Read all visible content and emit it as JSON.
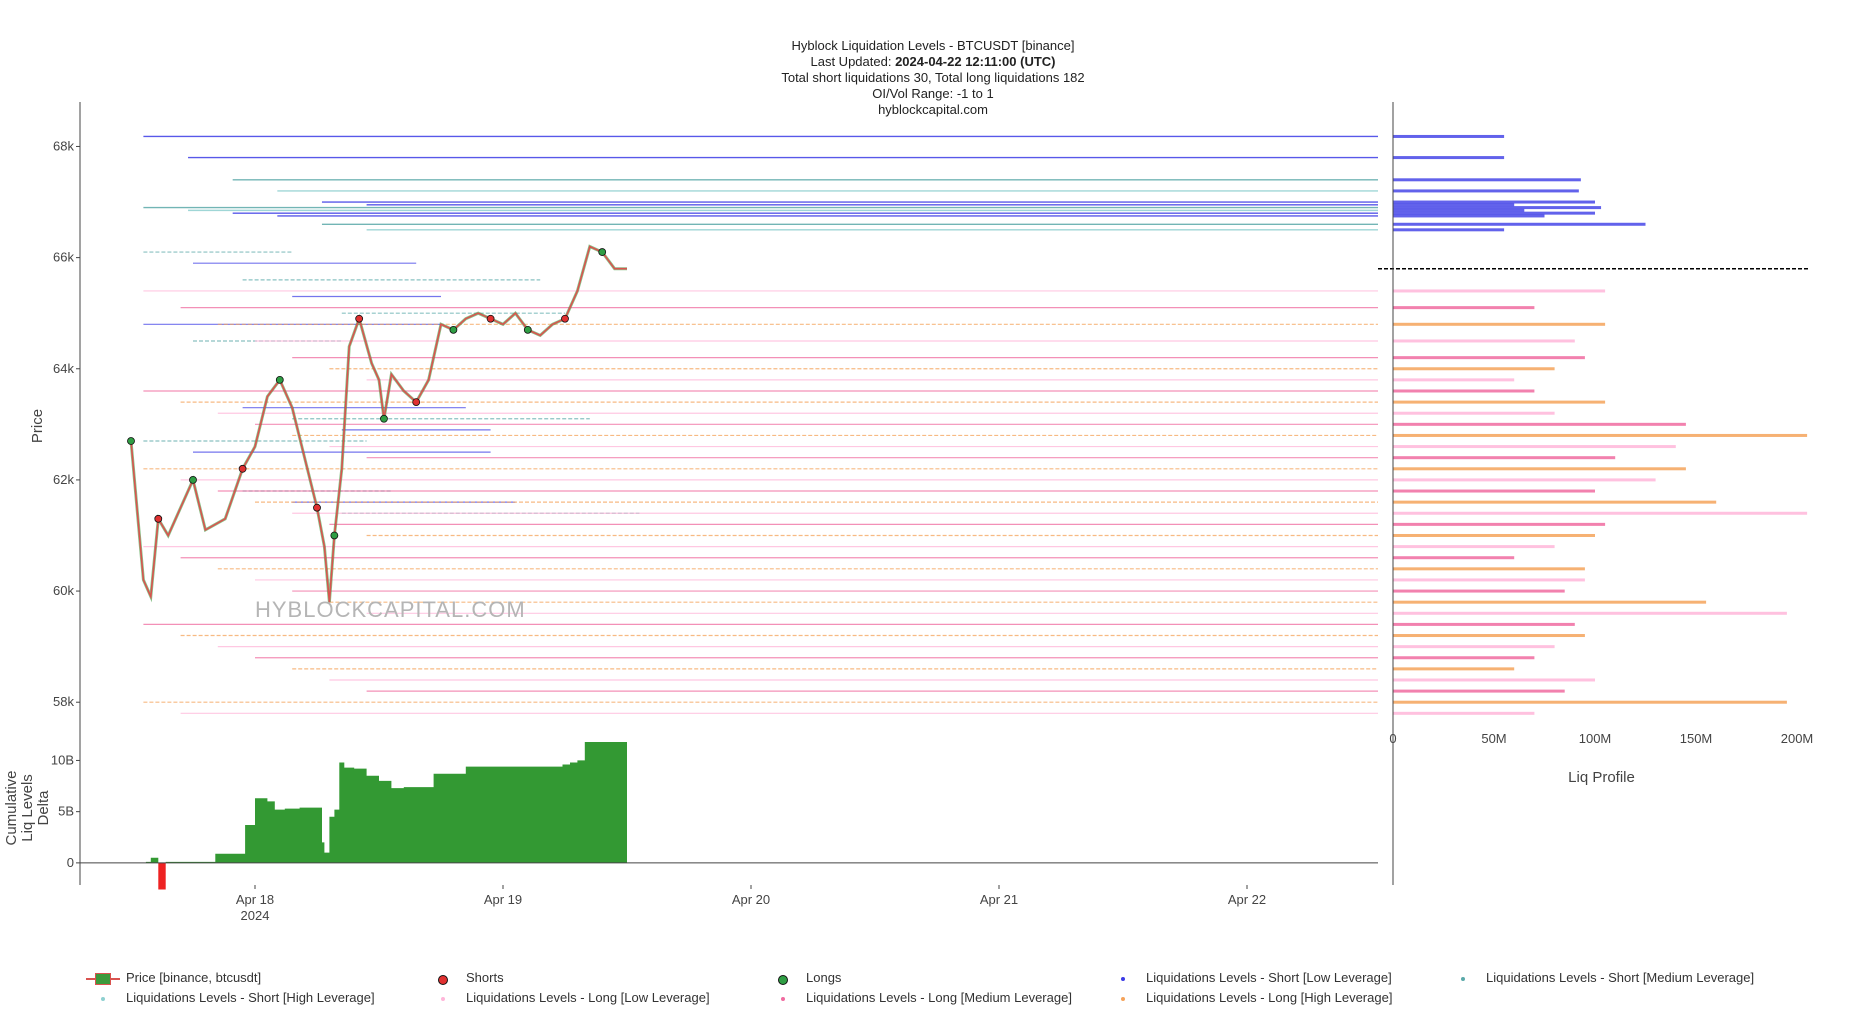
{
  "header": {
    "title": "Hyblock Liquidation Levels - BTCUSDT [binance]",
    "updated_label": "Last Updated:",
    "updated_value": "2024-04-22 12:11:00 (UTC)",
    "totals": "Total short liquidations 30, Total long liquidations 182",
    "oi_range": "OI/Vol Range: -1 to 1",
    "site": "hyblockcapital.com"
  },
  "watermark": "HYBLOCKCAPITAL.COM",
  "colors": {
    "price": "#d9534f",
    "price_alt": "#3c9a3c",
    "shorts": "#e03131",
    "longs": "#2f9e44",
    "short_low": "#3b3be6",
    "short_med": "#5aa9a9",
    "short_high": "#8fd0d0",
    "long_low": "#ffb6d9",
    "long_med": "#f06ba0",
    "long_high": "#f5a35a",
    "delta_pos": "#339933",
    "delta_neg": "#ee2222",
    "current_price_line": "#000000"
  },
  "chart_data": [
    {
      "type": "line",
      "name": "price-panel",
      "ylabel": "Price",
      "ylim": [
        57500,
        68800
      ],
      "y_ticks": [
        "58k",
        "60k",
        "62k",
        "64k",
        "66k",
        "68k"
      ],
      "y_tick_values": [
        58000,
        60000,
        62000,
        64000,
        66000,
        68000
      ],
      "x_ticks": [
        "Apr 18",
        "Apr 19",
        "Apr 20",
        "Apr 21",
        "Apr 22"
      ],
      "x_tick_year": "2024",
      "xlim": [
        -0.56,
        1.51
      ],
      "current_price": 65800,
      "series": [
        {
          "name": "Price [binance, btcusdt]",
          "x": [
            -0.5,
            -0.45,
            -0.42,
            -0.39,
            -0.35,
            -0.3,
            -0.25,
            -0.2,
            -0.12,
            -0.05,
            0.0,
            0.05,
            0.1,
            0.15,
            0.2,
            0.25,
            0.28,
            0.3,
            0.32,
            0.35,
            0.38,
            0.42,
            0.47,
            0.5,
            0.52,
            0.55,
            0.6,
            0.65,
            0.7,
            0.75,
            0.8,
            0.85,
            0.9,
            0.95,
            1.0,
            1.05,
            1.1,
            1.15,
            1.2,
            1.25,
            1.3,
            1.35,
            1.4,
            1.45,
            1.5
          ],
          "values": [
            62700,
            60200,
            59900,
            61300,
            61000,
            61500,
            62000,
            61100,
            61300,
            62200,
            62600,
            63500,
            63800,
            63300,
            62400,
            61500,
            60800,
            59800,
            61000,
            62200,
            64400,
            64900,
            64100,
            63800,
            63100,
            63900,
            63600,
            63400,
            63800,
            64800,
            64700,
            64900,
            65000,
            64900,
            64800,
            65000,
            64700,
            64600,
            64800,
            64900,
            65400,
            66200,
            66100,
            65800,
            65800
          ]
        }
      ]
    },
    {
      "type": "area",
      "name": "cumulative-liq-delta",
      "ylabel": "Cumulative Liq Levels Delta",
      "ylabel_lines": [
        "Cumulative",
        "Liq Levels",
        "Delta"
      ],
      "ylim": [
        -0.5,
        11.8
      ],
      "y_ticks": [
        "0",
        "5B",
        "10B"
      ],
      "y_tick_values": [
        0,
        5,
        10
      ],
      "x": [
        -0.5,
        -0.44,
        -0.42,
        -0.39,
        -0.36,
        -0.3,
        -0.22,
        -0.16,
        -0.12,
        -0.05,
        -0.04,
        0.0,
        0.05,
        0.08,
        0.12,
        0.18,
        0.24,
        0.27,
        0.28,
        0.3,
        0.32,
        0.34,
        0.36,
        0.4,
        0.45,
        0.5,
        0.55,
        0.6,
        0.64,
        0.68,
        0.72,
        0.78,
        0.85,
        0.92,
        0.98,
        1.05,
        1.12,
        1.18,
        1.24,
        1.27,
        1.3,
        1.33,
        1.38,
        1.44,
        1.5
      ],
      "values": [
        0,
        0.1,
        0.5,
        -2.6,
        0.1,
        0.1,
        0.1,
        0.9,
        0.9,
        0.9,
        3.7,
        6.3,
        6.0,
        5.2,
        5.3,
        5.4,
        5.4,
        2.0,
        1.0,
        4.5,
        5.2,
        9.8,
        9.3,
        9.2,
        8.5,
        8.0,
        7.3,
        7.4,
        7.4,
        7.4,
        8.7,
        8.7,
        9.4,
        9.4,
        9.4,
        9.4,
        9.4,
        9.4,
        9.6,
        9.8,
        10.0,
        11.8,
        12.0,
        11.9,
        12.0
      ]
    },
    {
      "type": "bar",
      "name": "liq-profile",
      "xlabel": "Liq Profile",
      "x_ticks": [
        "0",
        "50M",
        "100M",
        "150M",
        "200M"
      ],
      "x_tick_values": [
        0,
        50,
        100,
        150,
        200
      ],
      "x_unit": "USD",
      "series": [
        {
          "name": "Short",
          "prices": [
            68180,
            67800,
            67400,
            67200,
            67000,
            66950,
            66900,
            66850,
            66800,
            66750,
            66600,
            66500
          ],
          "values": [
            55,
            55,
            93,
            92,
            100,
            60,
            103,
            65,
            100,
            75,
            125,
            55
          ]
        },
        {
          "name": "Long",
          "prices": [
            65400,
            65100,
            64800,
            64500,
            64200,
            64000,
            63800,
            63600,
            63400,
            63200,
            63000,
            62800,
            62600,
            62400,
            62200,
            62000,
            61800,
            61600,
            61400,
            61200,
            61000,
            60800,
            60600,
            60400,
            60200,
            60000,
            59800,
            59600,
            59400,
            59200,
            59000,
            58800,
            58600,
            58400,
            58200,
            58000,
            57800
          ],
          "values": [
            105,
            70,
            105,
            90,
            95,
            80,
            60,
            70,
            105,
            80,
            145,
            205,
            140,
            110,
            145,
            130,
            100,
            160,
            205,
            105,
            100,
            80,
            60,
            95,
            95,
            85,
            155,
            195,
            90,
            95,
            80,
            70,
            60,
            100,
            85,
            195,
            70
          ]
        }
      ]
    }
  ],
  "legend": [
    {
      "label": "Price [binance, btcusdt]",
      "kind": "price",
      "color": "#d9534f"
    },
    {
      "label": "Shorts",
      "kind": "dot",
      "color": "#e03131"
    },
    {
      "label": "Longs",
      "kind": "dot",
      "color": "#2f9e44"
    },
    {
      "label": "Liquidations Levels - Short [Low Leverage]",
      "kind": "line",
      "color": "#3b3be6"
    },
    {
      "label": "Liquidations Levels - Short [Medium Leverage]",
      "kind": "line",
      "color": "#5aa9a9"
    },
    {
      "label": "Liquidations Levels - Short [High Leverage]",
      "kind": "line",
      "color": "#8fd0d0"
    },
    {
      "label": "Liquidations Levels - Long [Low Leverage]",
      "kind": "line",
      "color": "#ffb6d9"
    },
    {
      "label": "Liquidations Levels - Long [Medium Leverage]",
      "kind": "line",
      "color": "#f06ba0"
    },
    {
      "label": "Liquidations Levels - Long [High Leverage]",
      "kind": "line",
      "color": "#f5a35a"
    }
  ]
}
